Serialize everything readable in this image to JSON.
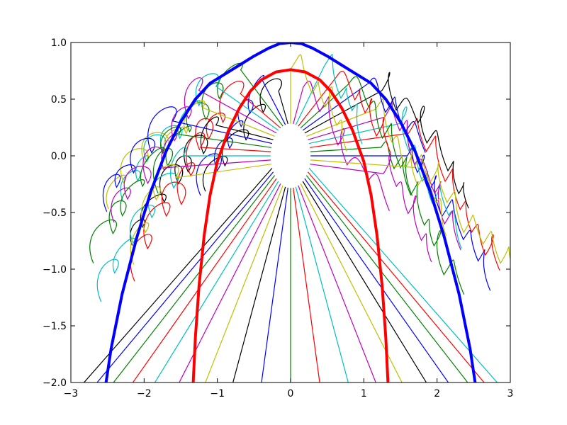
{
  "chart_data": {
    "type": "line",
    "title": "",
    "xlabel": "",
    "ylabel": "",
    "xlim": [
      -3,
      3
    ],
    "ylim": [
      -2.0,
      1.0
    ],
    "grid": false,
    "legend": "none",
    "xticks": [
      "−3",
      "−2",
      "−1",
      "0",
      "1",
      "2",
      "3"
    ],
    "xtick_values": [
      -3,
      -2,
      -1,
      0,
      1,
      2,
      3
    ],
    "yticks": [
      "1.0",
      "0.5",
      "0.0",
      "−0.5",
      "−1.0",
      "−1.5",
      "−2.0"
    ],
    "ytick_values": [
      1.0,
      0.5,
      0.0,
      -0.5,
      -1.0,
      -1.5,
      -2.0
    ],
    "palette": [
      "#0000ff",
      "#008000",
      "#ff0000",
      "#00bfbf",
      "#bf00bf",
      "#bfbf00",
      "#000000"
    ],
    "series": [
      {
        "color": "#0000ff",
        "linewidth": "thick",
        "x": [
          -2.52,
          -2.45,
          -2.3,
          -2.1,
          -1.9,
          -1.7,
          -1.5,
          -1.3,
          -1.1,
          -0.9,
          -0.7,
          -0.5,
          -0.3,
          -0.15,
          0,
          0.15,
          0.3,
          0.5,
          0.7,
          0.9,
          1.1,
          1.3,
          1.5,
          1.7,
          1.9,
          2.1,
          2.3,
          2.45,
          2.52
        ],
        "y": [
          -2.0,
          -1.7,
          -1.22,
          -0.72,
          -0.3,
          0.04,
          0.3,
          0.5,
          0.64,
          0.72,
          0.8,
          0.88,
          0.95,
          0.99,
          1.0,
          0.99,
          0.95,
          0.88,
          0.8,
          0.72,
          0.64,
          0.5,
          0.3,
          0.04,
          -0.3,
          -0.72,
          -1.22,
          -1.7,
          -2.0
        ]
      },
      {
        "color": "#ff0000",
        "linewidth": "thick",
        "x": [
          -1.33,
          -1.3,
          -1.25,
          -1.18,
          -1.1,
          -1.0,
          -0.85,
          -0.7,
          -0.55,
          -0.4,
          -0.2,
          0,
          0.2,
          0.4,
          0.55,
          0.7,
          0.85,
          1.0,
          1.1,
          1.18,
          1.25,
          1.3,
          1.33
        ],
        "y": [
          -2.0,
          -1.6,
          -1.15,
          -0.7,
          -0.35,
          -0.05,
          0.22,
          0.42,
          0.57,
          0.67,
          0.74,
          0.76,
          0.74,
          0.67,
          0.57,
          0.42,
          0.22,
          -0.05,
          -0.35,
          -0.7,
          -1.15,
          -1.6,
          -2.0
        ]
      }
    ]
  }
}
